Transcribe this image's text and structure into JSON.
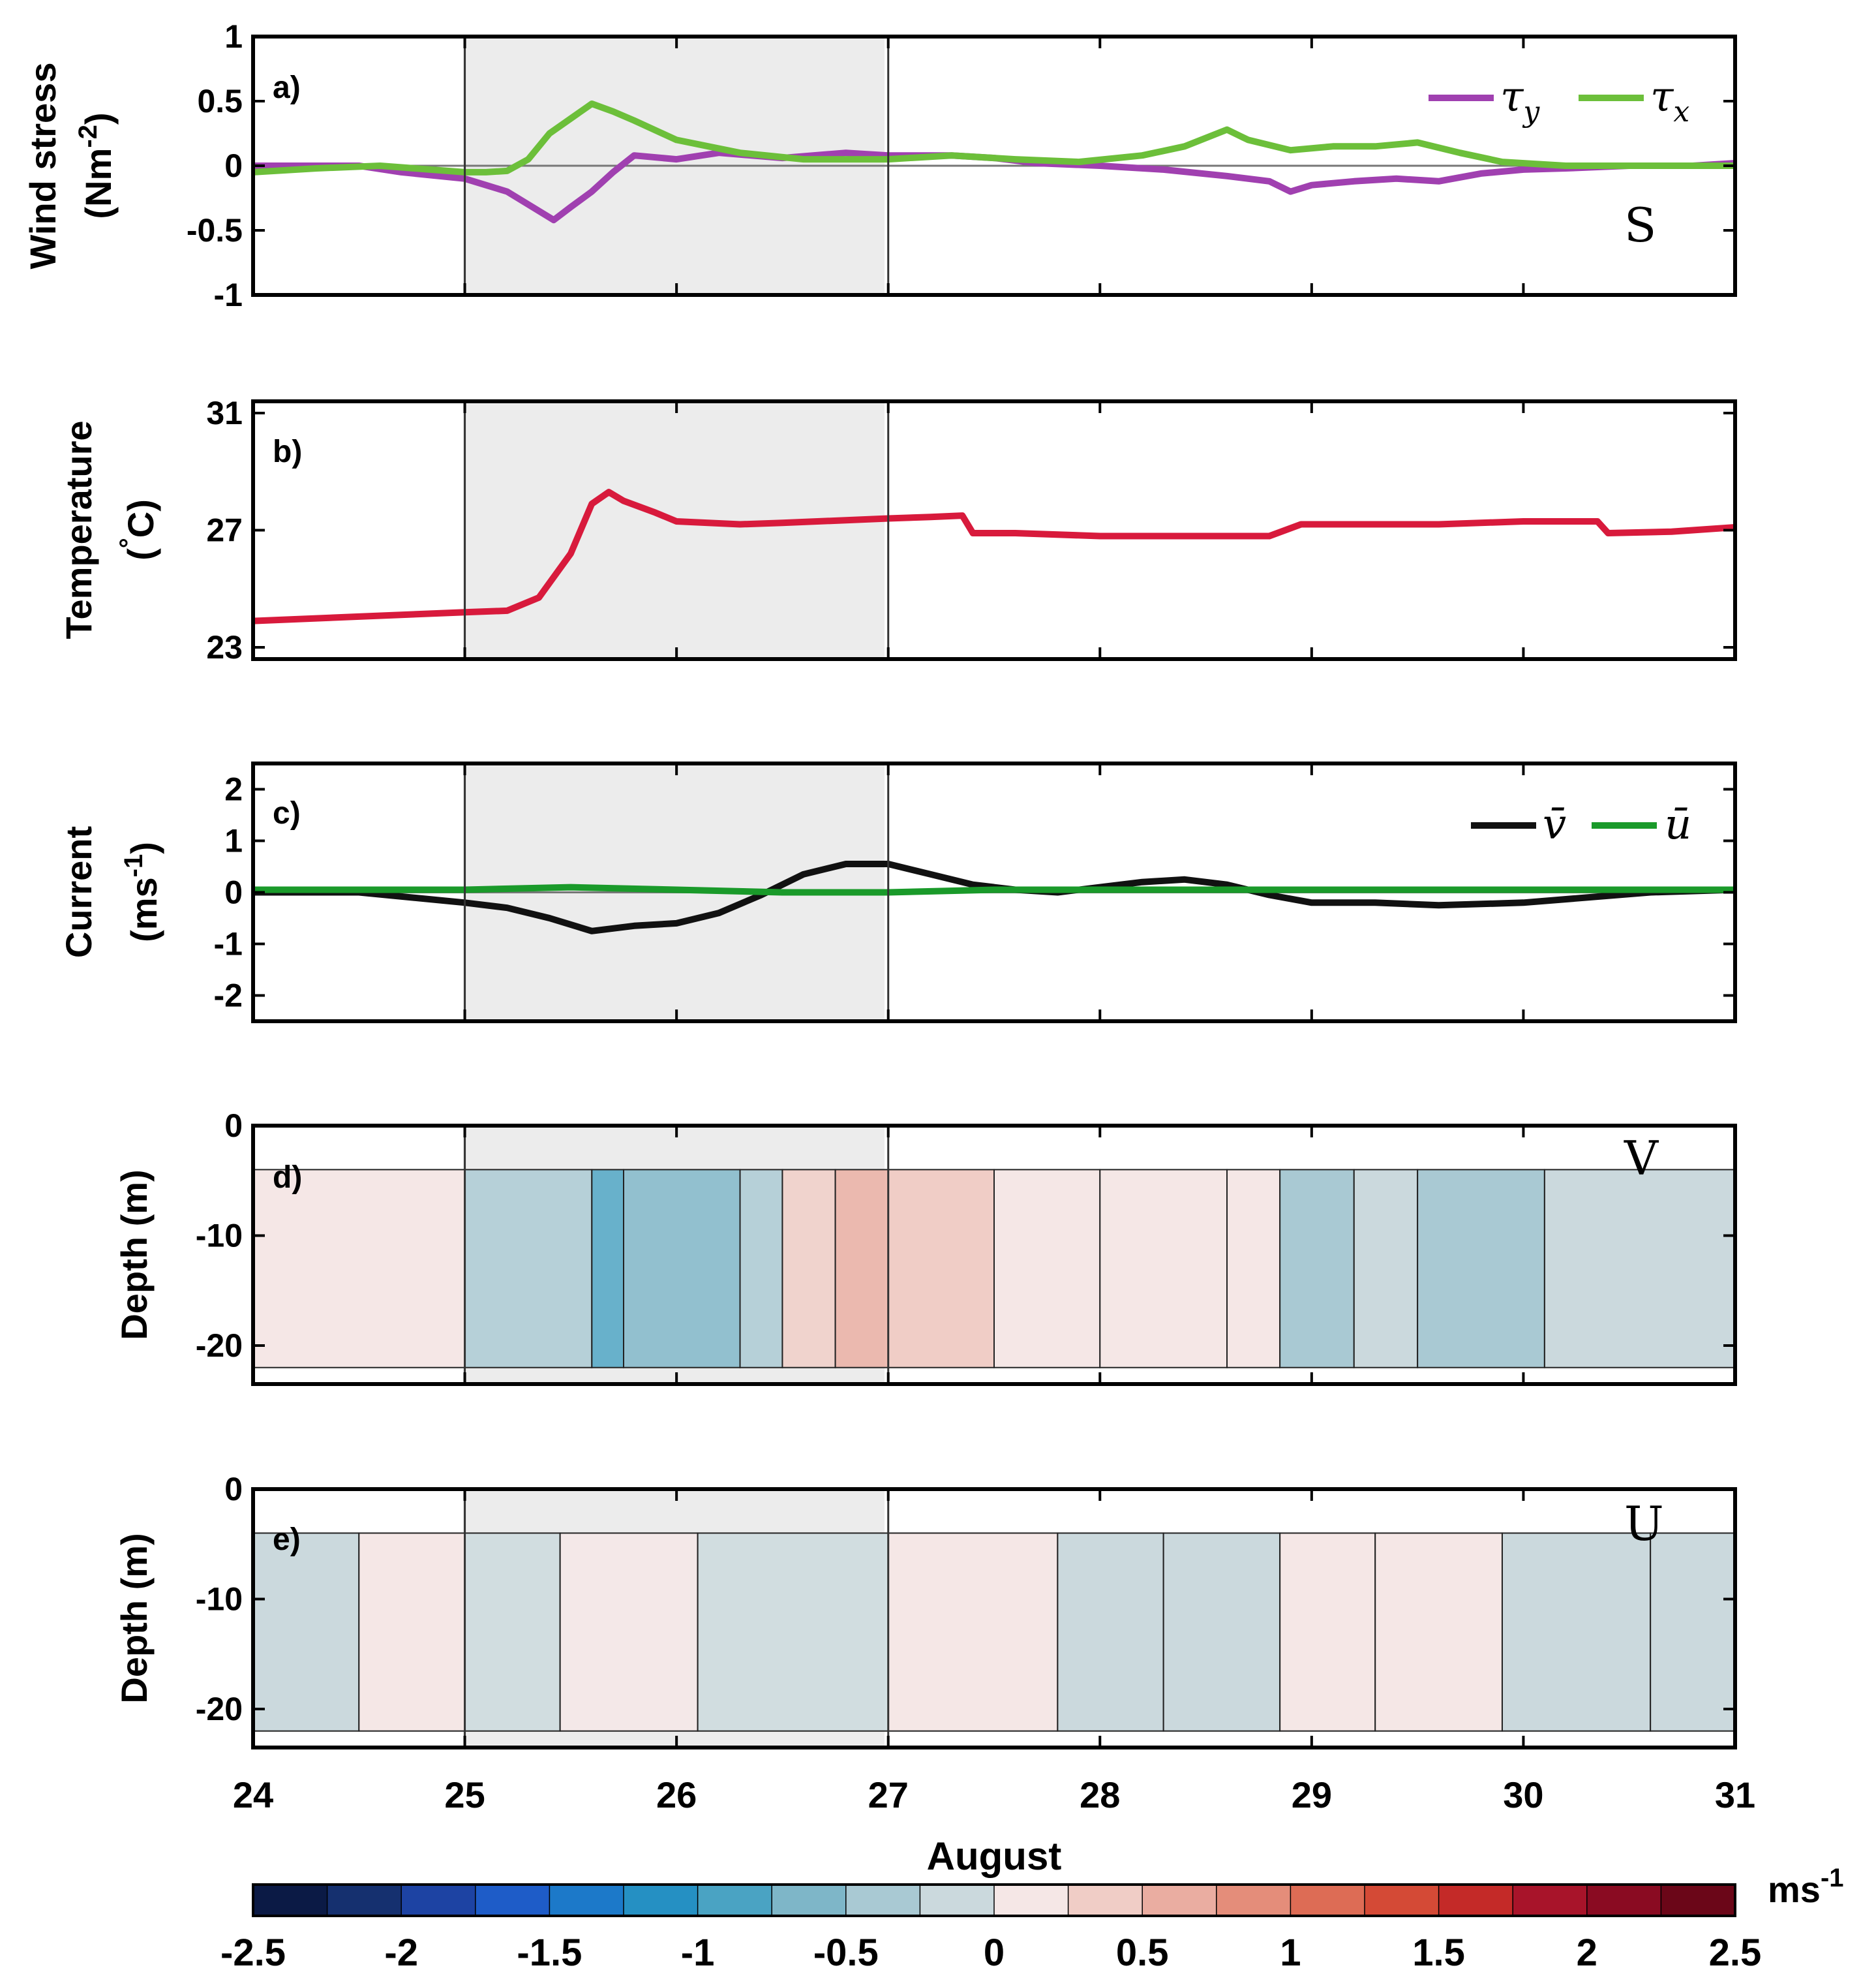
{
  "xaxis": {
    "label": "August",
    "range": [
      24,
      31
    ],
    "ticks": [
      "24",
      "25",
      "26",
      "27",
      "28",
      "29",
      "30",
      "31"
    ]
  },
  "shading": {
    "x_start": 25,
    "x_end": 27,
    "color": "#ececec"
  },
  "panels": {
    "a": {
      "label": "a)",
      "ylabel": [
        "Wind stress",
        "(Nm",
        "-2",
        ")"
      ],
      "ylim": [
        -1,
        1
      ],
      "yticks": [
        "1",
        "0.5",
        "0",
        "-0.5",
        "-1"
      ],
      "ytick_values": [
        1,
        0.5,
        0,
        -0.5,
        -1
      ],
      "station": "S",
      "legend": [
        {
          "name": "τ",
          "sub": "y",
          "color": "#a040b0"
        },
        {
          "name": "τ",
          "sub": "x",
          "color": "#6cbf3a"
        }
      ]
    },
    "b": {
      "label": "b)",
      "ylabel": [
        "Temperature",
        "(",
        "°",
        "C)"
      ],
      "ylim": [
        22.6,
        31.4
      ],
      "yticks": [
        "31",
        "27",
        "23"
      ],
      "ytick_values": [
        31,
        27,
        23
      ]
    },
    "c": {
      "label": "c)",
      "ylabel": [
        "Current",
        "(ms",
        "-1",
        ")"
      ],
      "ylim": [
        -2.5,
        2.5
      ],
      "yticks": [
        "2",
        "1",
        "0",
        "-1",
        "-2"
      ],
      "ytick_values": [
        2,
        1,
        0,
        -1,
        -2
      ],
      "legend": [
        {
          "name": "v̄",
          "color": "#111111"
        },
        {
          "name": "ū",
          "color": "#1a9a2a"
        }
      ]
    },
    "d": {
      "label": "d)",
      "ylabel": "Depth  (m)",
      "ylim": [
        -23.5,
        0
      ],
      "yticks": [
        "0",
        "-10",
        "-20"
      ],
      "ytick_values": [
        0,
        -10,
        -20
      ],
      "station": "V"
    },
    "e": {
      "label": "e)",
      "ylabel": "Depth  (m)",
      "ylim": [
        -23.5,
        0
      ],
      "yticks": [
        "0",
        "-10",
        "-20"
      ],
      "ytick_values": [
        0,
        -10,
        -20
      ],
      "station": "U"
    }
  },
  "colorbar": {
    "unit": "ms",
    "unit_exp": "-1",
    "range": [
      -2.5,
      2.5
    ],
    "ticks": [
      "-2.5",
      "-2",
      "-1.5",
      "-1",
      "-0.5",
      "0",
      "0.5",
      "1",
      "1.5",
      "2",
      "2.5"
    ],
    "colors": [
      "#0b1a45",
      "#15306f",
      "#1d43a3",
      "#1e5cc8",
      "#1c79c9",
      "#2590c3",
      "#4aa3c3",
      "#7eb6c8",
      "#a9c9d3",
      "#cbd9dd",
      "#f5e7e6",
      "#f0cdc6",
      "#eaada1",
      "#e48d7a",
      "#dd6c55",
      "#d44a36",
      "#c42a28",
      "#a8142a",
      "#8a0b22",
      "#6b0618"
    ]
  },
  "chart_data": [
    {
      "panel": "a",
      "type": "line",
      "title": "",
      "xlabel": "August",
      "ylabel": "Wind stress (Nm-2)",
      "ylim": [
        -1,
        1
      ],
      "series": [
        {
          "name": "τy",
          "x": [
            24.0,
            24.5,
            24.7,
            25.0,
            25.1,
            25.2,
            25.3,
            25.42,
            25.5,
            25.6,
            25.7,
            25.8,
            26.0,
            26.2,
            26.5,
            26.8,
            27.0,
            27.3,
            27.5,
            27.7,
            28.0,
            28.3,
            28.6,
            28.8,
            28.9,
            29.0,
            29.2,
            29.4,
            29.6,
            29.8,
            30.0,
            30.2,
            30.5,
            30.8,
            31.0
          ],
          "y": [
            0.0,
            0.0,
            -0.05,
            -0.1,
            -0.15,
            -0.2,
            -0.3,
            -0.42,
            -0.32,
            -0.2,
            -0.05,
            0.08,
            0.05,
            0.1,
            0.06,
            0.1,
            0.08,
            0.08,
            0.06,
            0.02,
            0.0,
            -0.03,
            -0.08,
            -0.12,
            -0.2,
            -0.15,
            -0.12,
            -0.1,
            -0.12,
            -0.06,
            -0.03,
            -0.02,
            0.0,
            0.0,
            0.02
          ]
        },
        {
          "name": "τx",
          "x": [
            24.0,
            24.3,
            24.6,
            25.0,
            25.1,
            25.2,
            25.3,
            25.4,
            25.6,
            25.7,
            25.8,
            26.0,
            26.3,
            26.6,
            27.0,
            27.3,
            27.6,
            27.9,
            28.2,
            28.4,
            28.6,
            28.7,
            28.9,
            29.1,
            29.3,
            29.5,
            29.7,
            29.9,
            30.2,
            30.5,
            31.0
          ],
          "y": [
            -0.05,
            -0.02,
            0.0,
            -0.05,
            -0.05,
            -0.04,
            0.05,
            0.25,
            0.48,
            0.42,
            0.35,
            0.2,
            0.1,
            0.05,
            0.05,
            0.08,
            0.05,
            0.03,
            0.08,
            0.15,
            0.28,
            0.2,
            0.12,
            0.15,
            0.15,
            0.18,
            0.1,
            0.03,
            0.0,
            0.0,
            0.0
          ]
        }
      ]
    },
    {
      "panel": "b",
      "type": "line",
      "title": "",
      "xlabel": "August",
      "ylabel": "Temperature (°C)",
      "ylim": [
        22.6,
        31.4
      ],
      "series": [
        {
          "name": "Temperature",
          "x": [
            24.0,
            24.5,
            25.0,
            25.2,
            25.35,
            25.5,
            25.6,
            25.68,
            25.75,
            25.9,
            26.0,
            26.3,
            26.5,
            27.0,
            27.2,
            27.35,
            27.4,
            27.6,
            28.0,
            28.5,
            28.8,
            28.95,
            29.2,
            29.6,
            30.0,
            30.2,
            30.35,
            30.4,
            30.7,
            31.0
          ],
          "y": [
            23.9,
            24.05,
            24.2,
            24.25,
            24.7,
            26.2,
            27.9,
            28.3,
            28.0,
            27.6,
            27.3,
            27.2,
            27.25,
            27.4,
            27.45,
            27.5,
            26.9,
            26.9,
            26.8,
            26.8,
            26.8,
            27.2,
            27.2,
            27.2,
            27.3,
            27.3,
            27.3,
            26.9,
            26.95,
            27.1
          ]
        }
      ]
    },
    {
      "panel": "c",
      "type": "line",
      "title": "",
      "xlabel": "August",
      "ylabel": "Current (ms-1)",
      "ylim": [
        -2.5,
        2.5
      ],
      "series": [
        {
          "name": "v̄",
          "x": [
            24.0,
            24.5,
            25.0,
            25.2,
            25.4,
            25.6,
            25.8,
            26.0,
            26.2,
            26.4,
            26.6,
            26.8,
            27.0,
            27.2,
            27.4,
            27.6,
            27.8,
            28.0,
            28.2,
            28.4,
            28.6,
            28.8,
            29.0,
            29.3,
            29.6,
            30.0,
            30.3,
            30.6,
            31.0
          ],
          "y": [
            0.0,
            0.0,
            -0.2,
            -0.3,
            -0.5,
            -0.75,
            -0.65,
            -0.6,
            -0.4,
            -0.05,
            0.35,
            0.55,
            0.55,
            0.35,
            0.15,
            0.05,
            0.0,
            0.1,
            0.2,
            0.25,
            0.15,
            -0.05,
            -0.2,
            -0.2,
            -0.25,
            -0.2,
            -0.1,
            0.0,
            0.05
          ]
        },
        {
          "name": "ū",
          "x": [
            24.0,
            24.5,
            25.0,
            25.5,
            26.0,
            26.5,
            27.0,
            27.5,
            28.0,
            28.5,
            29.0,
            29.5,
            30.0,
            30.5,
            31.0
          ],
          "y": [
            0.05,
            0.05,
            0.05,
            0.1,
            0.05,
            0.0,
            0.0,
            0.05,
            0.05,
            0.05,
            0.05,
            0.05,
            0.05,
            0.05,
            0.05
          ]
        }
      ]
    },
    {
      "panel": "d",
      "type": "heatmap",
      "title": "",
      "xlabel": "August",
      "ylabel": "Depth (m)",
      "ylim": [
        -23.5,
        0
      ],
      "data_depth_range": [
        -22,
        -4
      ],
      "colorbar_range": [
        -2.5,
        2.5
      ],
      "columns": [
        {
          "x0": 24.0,
          "x1": 25.0,
          "value": 0.1
        },
        {
          "x0": 25.0,
          "x1": 25.6,
          "value": -0.5
        },
        {
          "x0": 25.6,
          "x1": 25.75,
          "value": -0.9
        },
        {
          "x0": 25.75,
          "x1": 26.3,
          "value": -0.7
        },
        {
          "x0": 26.3,
          "x1": 26.5,
          "value": -0.4
        },
        {
          "x0": 26.5,
          "x1": 26.75,
          "value": 0.3
        },
        {
          "x0": 26.75,
          "x1": 27.0,
          "value": 0.6
        },
        {
          "x0": 27.0,
          "x1": 27.5,
          "value": 0.3
        },
        {
          "x0": 27.5,
          "x1": 28.0,
          "value": 0.1
        },
        {
          "x0": 28.0,
          "x1": 28.6,
          "value": 0.15
        },
        {
          "x0": 28.6,
          "x1": 28.85,
          "value": 0.1
        },
        {
          "x0": 28.85,
          "x1": 29.2,
          "value": -0.4
        },
        {
          "x0": 29.2,
          "x1": 29.5,
          "value": -0.2
        },
        {
          "x0": 29.5,
          "x1": 30.1,
          "value": -0.45
        },
        {
          "x0": 30.1,
          "x1": 31.0,
          "value": -0.1
        }
      ]
    },
    {
      "panel": "e",
      "type": "heatmap",
      "title": "",
      "xlabel": "August",
      "ylabel": "Depth (m)",
      "ylim": [
        -23.5,
        0
      ],
      "data_depth_range": [
        -22,
        -4
      ],
      "colorbar_range": [
        -2.5,
        2.5
      ],
      "columns": [
        {
          "x0": 24.0,
          "x1": 24.5,
          "value": -0.1
        },
        {
          "x0": 24.5,
          "x1": 25.0,
          "value": 0.1
        },
        {
          "x0": 25.0,
          "x1": 25.45,
          "value": -0.1
        },
        {
          "x0": 25.45,
          "x1": 26.1,
          "value": 0.1
        },
        {
          "x0": 26.1,
          "x1": 27.0,
          "value": -0.15
        },
        {
          "x0": 27.0,
          "x1": 27.8,
          "value": 0.1
        },
        {
          "x0": 27.8,
          "x1": 28.3,
          "value": -0.1
        },
        {
          "x0": 28.3,
          "x1": 28.85,
          "value": -0.1
        },
        {
          "x0": 28.85,
          "x1": 29.3,
          "value": 0.1
        },
        {
          "x0": 29.3,
          "x1": 29.9,
          "value": 0.1
        },
        {
          "x0": 29.9,
          "x1": 30.6,
          "value": -0.1
        },
        {
          "x0": 30.6,
          "x1": 31.0,
          "value": -0.05
        }
      ]
    }
  ]
}
